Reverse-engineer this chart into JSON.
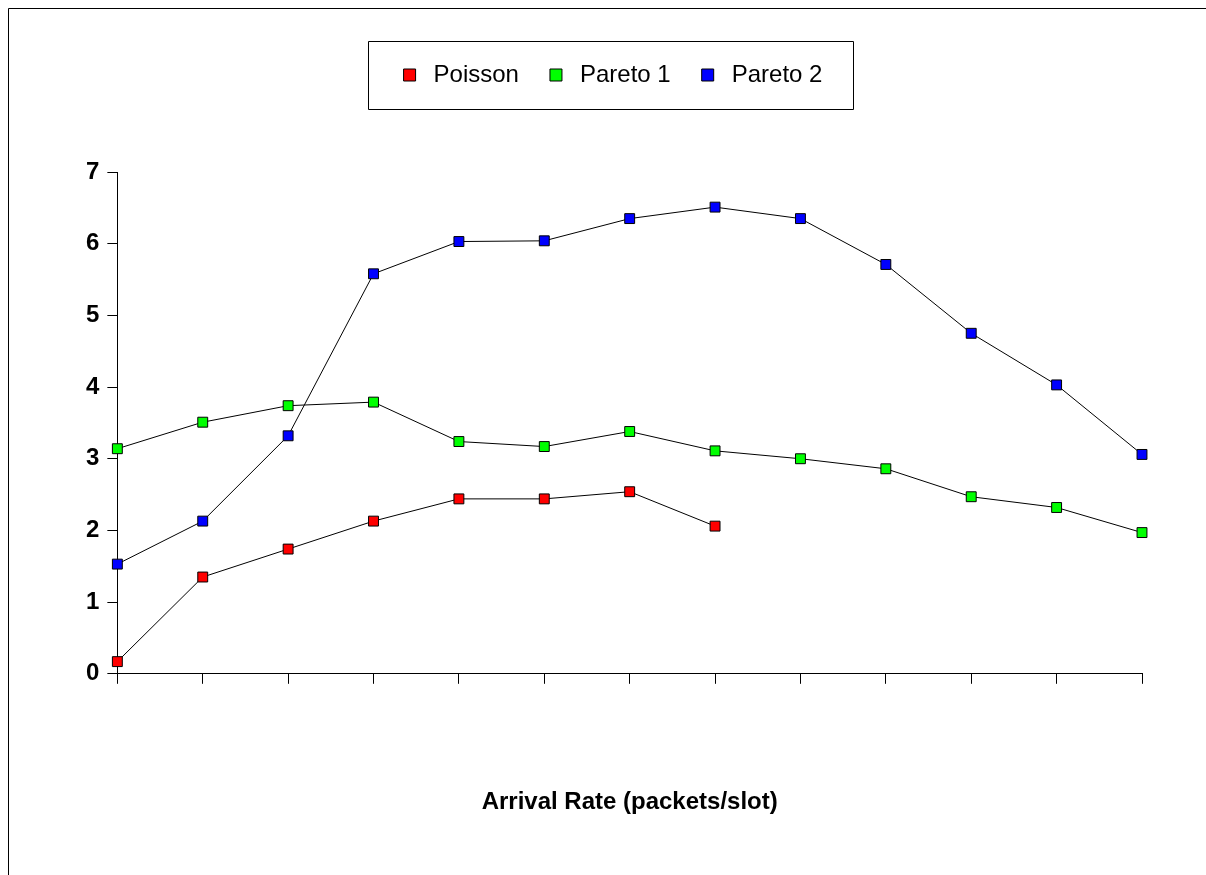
{
  "chart_data": {
    "type": "line",
    "xlabel": "Arrival Rate (packets/slot)",
    "categories": [
      null,
      null,
      null,
      null,
      null,
      null,
      null,
      null,
      null,
      null,
      null,
      null,
      null
    ],
    "series": [
      {
        "name": "Poisson",
        "color": "#ff0000",
        "values": [
          0.17,
          1.35,
          1.74,
          2.13,
          2.44,
          2.44,
          2.54,
          2.06,
          null,
          null,
          null,
          null,
          null
        ]
      },
      {
        "name": "Pareto 1",
        "color": "#00ff00",
        "values": [
          3.14,
          3.51,
          3.74,
          3.79,
          3.24,
          3.17,
          3.38,
          3.11,
          3.0,
          2.86,
          2.47,
          2.32,
          1.97
        ]
      },
      {
        "name": "Pareto 2",
        "color": "#0000ff",
        "values": [
          1.53,
          2.13,
          3.32,
          5.58,
          6.03,
          6.04,
          6.35,
          6.51,
          6.35,
          5.71,
          4.75,
          4.03,
          3.06
        ]
      }
    ],
    "ylim": [
      0,
      7
    ],
    "yticks": [
      0,
      1,
      2,
      3,
      4,
      5,
      6,
      7
    ],
    "grid": false,
    "legend": "top",
    "marker": "square",
    "line_style": "solid"
  }
}
